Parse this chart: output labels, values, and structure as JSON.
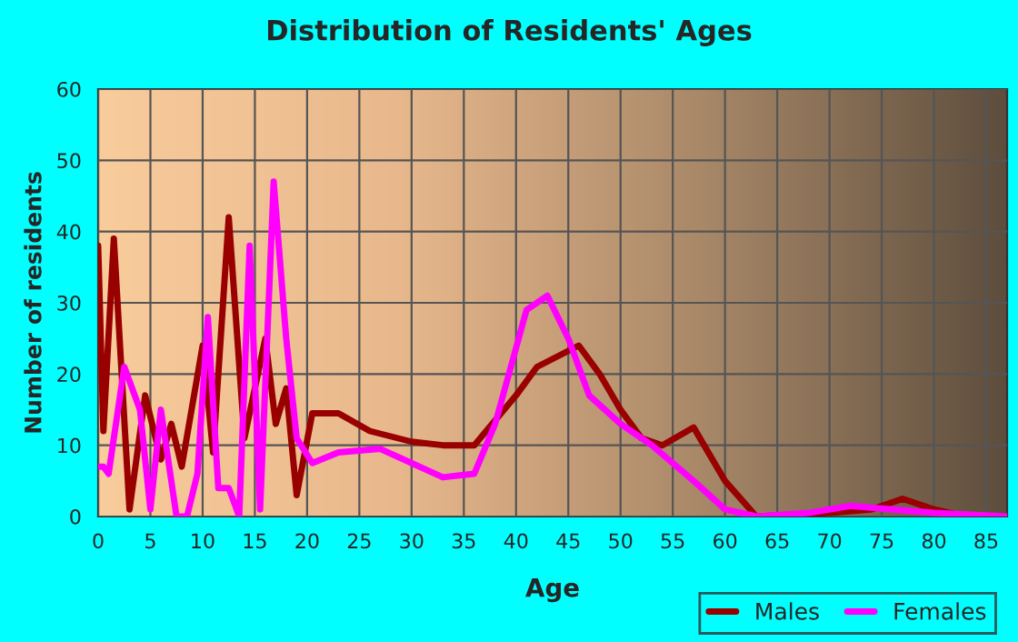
{
  "chart_data": {
    "type": "line",
    "title": "Distribution of Residents' Ages",
    "xlabel": "Age",
    "ylabel": "Number of residents",
    "xlim": [
      0,
      87
    ],
    "xticks": [
      0,
      5,
      10,
      15,
      20,
      25,
      30,
      35,
      40,
      45,
      50,
      55,
      60,
      65,
      70,
      75,
      80,
      85
    ],
    "ylim": [
      0,
      60
    ],
    "yticks": [
      0,
      10,
      20,
      30,
      40,
      50,
      60
    ],
    "grid": true,
    "legend": "bottom right",
    "marker": "none",
    "line_style": "solid",
    "series": [
      {
        "name": "Males",
        "color": "#990000",
        "x": [
          0,
          0.5,
          1.5,
          3,
          4.5,
          6,
          7,
          8,
          10,
          11,
          12.5,
          14,
          16,
          17,
          18,
          19,
          20.5,
          23,
          26,
          30,
          33,
          36,
          40,
          42,
          46,
          48,
          50,
          52,
          54,
          57,
          60,
          63,
          70,
          74,
          77,
          80,
          83,
          87
        ],
        "values": [
          38,
          12,
          39,
          1,
          17,
          8,
          13,
          7,
          24,
          9,
          42,
          11,
          25,
          13,
          18,
          3,
          14.5,
          14.5,
          12,
          10.5,
          10,
          10,
          17,
          21,
          24,
          20,
          15,
          11,
          10,
          12.5,
          5,
          0,
          0.5,
          1,
          2.5,
          1,
          0,
          0
        ]
      },
      {
        "name": "Females",
        "color": "#ff00ff",
        "x": [
          0,
          0.5,
          1,
          2.5,
          4,
          5,
          6,
          7.5,
          8.5,
          9.5,
          10.5,
          11.5,
          12.5,
          13.5,
          14.5,
          15.5,
          16.8,
          18,
          19,
          20.5,
          23,
          27,
          30,
          33,
          36,
          38,
          41,
          43,
          45,
          47,
          50,
          53,
          57,
          60,
          63,
          68,
          72,
          76,
          80,
          87
        ],
        "values": [
          7,
          7,
          6,
          21,
          15,
          1,
          15,
          0,
          0,
          6,
          28,
          4,
          4,
          0,
          38,
          1,
          47,
          25,
          11,
          7.5,
          9,
          9.5,
          7.5,
          5.5,
          6,
          13,
          29,
          31,
          25,
          17,
          13,
          10,
          5,
          1,
          0,
          0.5,
          1.5,
          1,
          0.5,
          0
        ]
      }
    ]
  }
}
